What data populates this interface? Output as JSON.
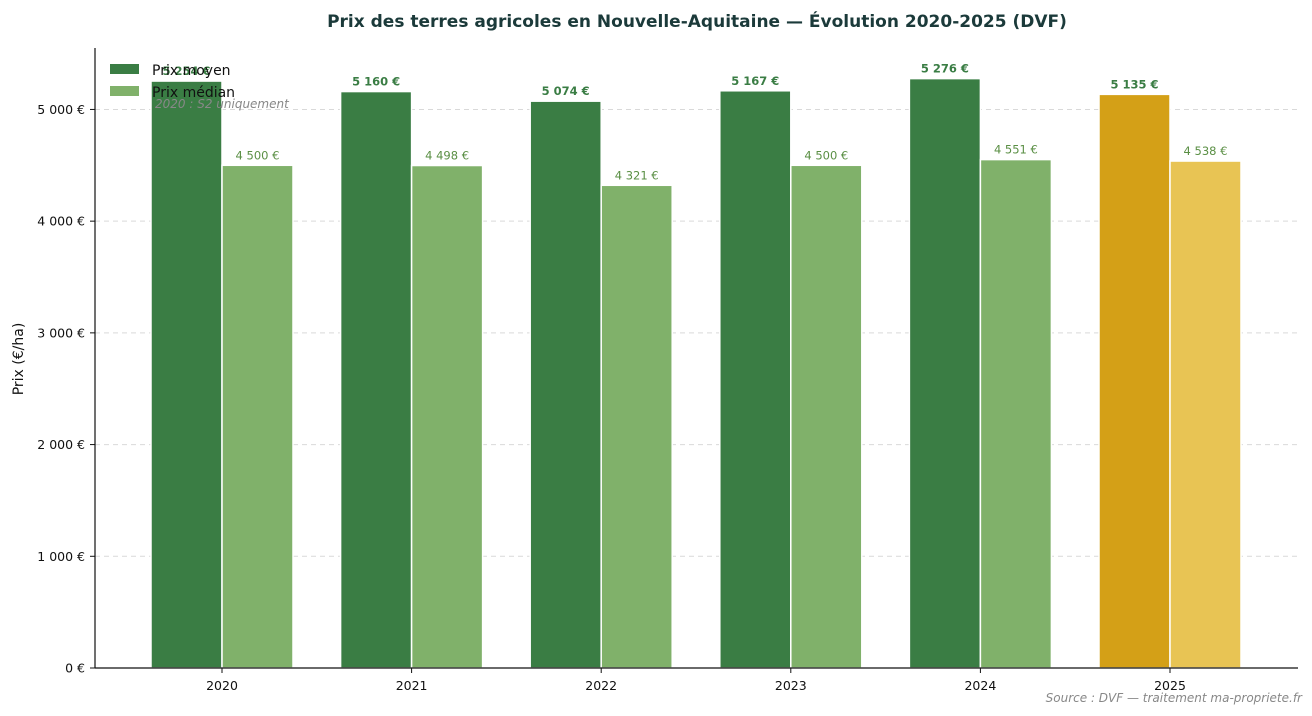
{
  "chart_data": {
    "type": "bar",
    "title": "Prix des terres agricoles en Nouvelle-Aquitaine — Évolution 2020-2025 (DVF)",
    "xlabel": "",
    "ylabel": "Prix (€/ha)",
    "categories": [
      "2020",
      "2021",
      "2022",
      "2023",
      "2024",
      "2025"
    ],
    "series": [
      {
        "name": "Prix moyen",
        "values": [
          5254,
          5160,
          5074,
          5167,
          5276,
          5135
        ],
        "labels": [
          "5 254 €",
          "5 160 €",
          "5 074 €",
          "5 167 €",
          "5 276 €",
          "5 135 €"
        ],
        "color": "#3a7d44",
        "highlight_color": "#d4a017"
      },
      {
        "name": "Prix médian",
        "values": [
          4500,
          4498,
          4321,
          4500,
          4551,
          4538
        ],
        "labels": [
          "4 500 €",
          "4 498 €",
          "4 321 €",
          "4 500 €",
          "4 551 €",
          "4 538 €"
        ],
        "color": "#80b16a",
        "highlight_color": "#e8c454"
      }
    ],
    "highlight_category": "2025",
    "ylim": [
      0,
      5550
    ],
    "yticks": [
      0,
      1000,
      2000,
      3000,
      4000,
      5000
    ],
    "ytick_labels": [
      "0 €",
      "1 000 €",
      "2 000 €",
      "3 000 €",
      "4 000 €",
      "5 000 €"
    ],
    "grid": "y-dashed",
    "legend_position": "top-left",
    "annotation": "2020 : S2 uniquement",
    "source": "Source : DVF — traitement ma-propriete.fr",
    "label_colors": {
      "mean": "#3a7d44",
      "median": "#5a8f44"
    }
  }
}
